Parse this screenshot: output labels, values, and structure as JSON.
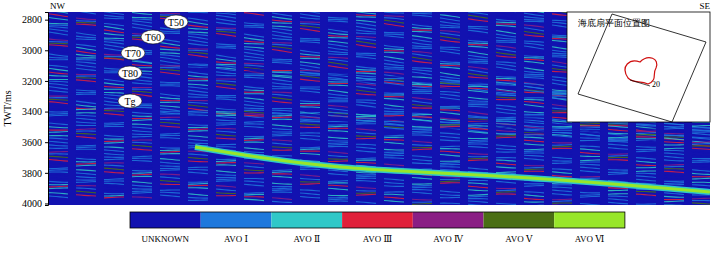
{
  "chart_data": {
    "type": "seismic_section",
    "y_label": "TWT/ms",
    "ylim": [
      2750,
      4010
    ],
    "yticks": [
      2800,
      3000,
      3200,
      3400,
      3600,
      3800,
      4000
    ],
    "directions": [
      "NW",
      "SE"
    ],
    "horizons": [
      "T50",
      "T60",
      "T70",
      "T80",
      "Tg"
    ],
    "classes": [
      {
        "name": "UNKNOWN",
        "color": "#1212b0"
      },
      {
        "name": "AVO Ⅰ",
        "color": "#1e78dc"
      },
      {
        "name": "AVO Ⅱ",
        "color": "#30c8c8"
      },
      {
        "name": "AVO Ⅲ",
        "color": "#e0203a"
      },
      {
        "name": "AVO Ⅳ",
        "color": "#8a1e84"
      },
      {
        "name": "AVO Ⅴ",
        "color": "#4a6e14"
      },
      {
        "name": "AVO Ⅵ",
        "color": "#98e62a"
      }
    ],
    "inset": {
      "title": "海底扇平面位置图",
      "label": "20"
    }
  }
}
